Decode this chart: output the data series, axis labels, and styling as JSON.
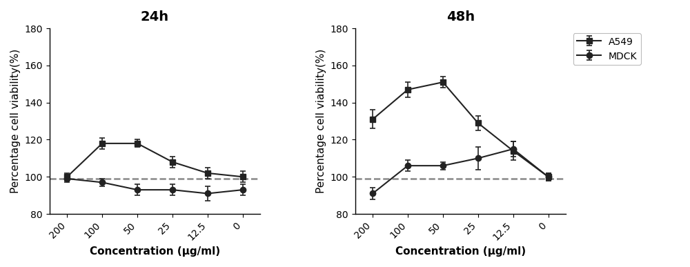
{
  "x_labels": [
    "200",
    "100",
    "50",
    "25",
    "12.5",
    "0"
  ],
  "x_positions": [
    0,
    1,
    2,
    3,
    4,
    5
  ],
  "panel1": {
    "title": "24h",
    "A549_y": [
      100,
      118,
      118,
      108,
      102,
      100
    ],
    "A549_err": [
      2,
      3,
      2,
      3,
      3,
      3
    ],
    "MDCK_y": [
      99,
      97,
      93,
      93,
      91,
      93
    ],
    "MDCK_err": [
      2,
      2,
      3,
      3,
      4,
      3
    ]
  },
  "panel2": {
    "title": "48h",
    "A549_y": [
      131,
      147,
      151,
      129,
      114,
      100
    ],
    "A549_err": [
      5,
      4,
      3,
      4,
      5,
      2
    ],
    "MDCK_y": [
      91,
      106,
      106,
      110,
      115,
      100
    ],
    "MDCK_err": [
      3,
      3,
      2,
      6,
      4,
      2
    ]
  },
  "ylabel": "Percentage cell viability(%)",
  "xlabel": "Concentration (μg/ml)",
  "ylim": [
    80,
    180
  ],
  "yticks": [
    80,
    100,
    120,
    140,
    160,
    180
  ],
  "line_color": "#222222",
  "dashed_color": "#888888",
  "legend_A549": "A549",
  "legend_MDCK": "MDCK",
  "title_fontsize": 14,
  "label_fontsize": 11,
  "tick_fontsize": 10
}
